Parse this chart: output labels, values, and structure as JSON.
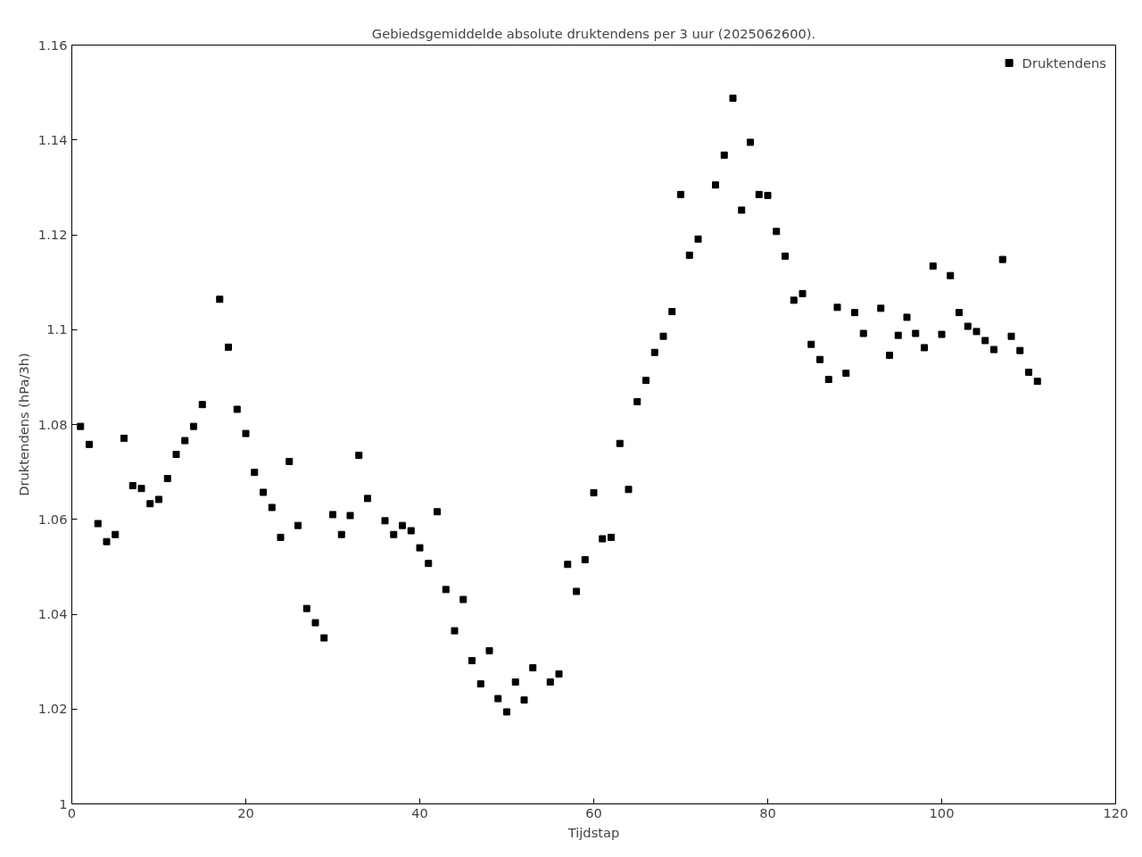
{
  "chart_data": {
    "type": "scatter",
    "title": "Gebiedsgemiddelde absolute druktendens per 3 uur (2025062600).",
    "xlabel": "Tijdstap",
    "ylabel": "Druktendens (hPa/3h)",
    "x": [
      1,
      2,
      3,
      4,
      5,
      6,
      7,
      8,
      9,
      10,
      11,
      12,
      13,
      14,
      15,
      17,
      18,
      19,
      20,
      21,
      22,
      23,
      24,
      25,
      26,
      27,
      28,
      29,
      30,
      31,
      32,
      33,
      34,
      36,
      37,
      38,
      39,
      40,
      41,
      42,
      43,
      44,
      45,
      46,
      47,
      48,
      49,
      50,
      51,
      52,
      53,
      55,
      56,
      57,
      58,
      59,
      60,
      61,
      62,
      63,
      64,
      65,
      66,
      67,
      68,
      69,
      70,
      71,
      72,
      74,
      75,
      76,
      77,
      78,
      79,
      80,
      81,
      82,
      83,
      84,
      85,
      86,
      87,
      88,
      89,
      90,
      91,
      93,
      94,
      95,
      96,
      97,
      98,
      99,
      100,
      101,
      102,
      103,
      104,
      105,
      106,
      107,
      108,
      109,
      110,
      111
    ],
    "series": [
      {
        "name": "Druktendens",
        "color": "#000000",
        "values": [
          1.0796,
          1.0758,
          1.0591,
          1.0553,
          1.0568,
          1.0771,
          1.0671,
          1.0665,
          1.0633,
          1.0642,
          1.0686,
          1.0737,
          1.0766,
          1.0796,
          1.0842,
          1.1064,
          1.0963,
          1.0832,
          1.0781,
          1.0699,
          1.0657,
          1.0625,
          1.0562,
          1.0722,
          1.0587,
          1.0412,
          1.0382,
          1.035,
          1.061,
          1.0568,
          1.0608,
          1.0735,
          1.0644,
          1.0597,
          1.0568,
          1.0587,
          1.0576,
          1.054,
          1.0507,
          1.0616,
          1.0452,
          1.0365,
          1.0431,
          1.0302,
          1.0253,
          1.0323,
          1.0222,
          1.0194,
          1.0257,
          1.0219,
          1.0287,
          1.0257,
          1.0274,
          1.0505,
          1.0448,
          1.0515,
          1.0656,
          1.0559,
          1.0562,
          1.076,
          1.0663,
          1.0848,
          1.0893,
          1.0952,
          1.0986,
          1.1038,
          1.1285,
          1.1157,
          1.1191,
          1.1305,
          1.1368,
          1.1488,
          1.1252,
          1.1395,
          1.1285,
          1.1283,
          1.1207,
          1.1155,
          1.1062,
          1.1076,
          1.0969,
          1.0937,
          1.0895,
          1.1047,
          1.0908,
          1.1036,
          1.0992,
          1.1045,
          1.0946,
          1.0988,
          1.1026,
          1.0992,
          1.0962,
          1.1134,
          1.099,
          1.1114,
          1.1036,
          1.1007,
          1.0996,
          1.0977,
          1.0958,
          1.1148,
          1.0986,
          1.0956,
          1.091,
          1.0891
        ]
      }
    ],
    "xlim": [
      0,
      120
    ],
    "xticks": [
      0,
      20,
      40,
      60,
      80,
      100,
      120
    ],
    "ylim": [
      1,
      1.16
    ],
    "yticks": [
      1,
      1.02,
      1.04,
      1.06,
      1.08,
      1.1,
      1.12,
      1.14,
      1.16
    ],
    "marker": "square",
    "legend": "top right"
  }
}
